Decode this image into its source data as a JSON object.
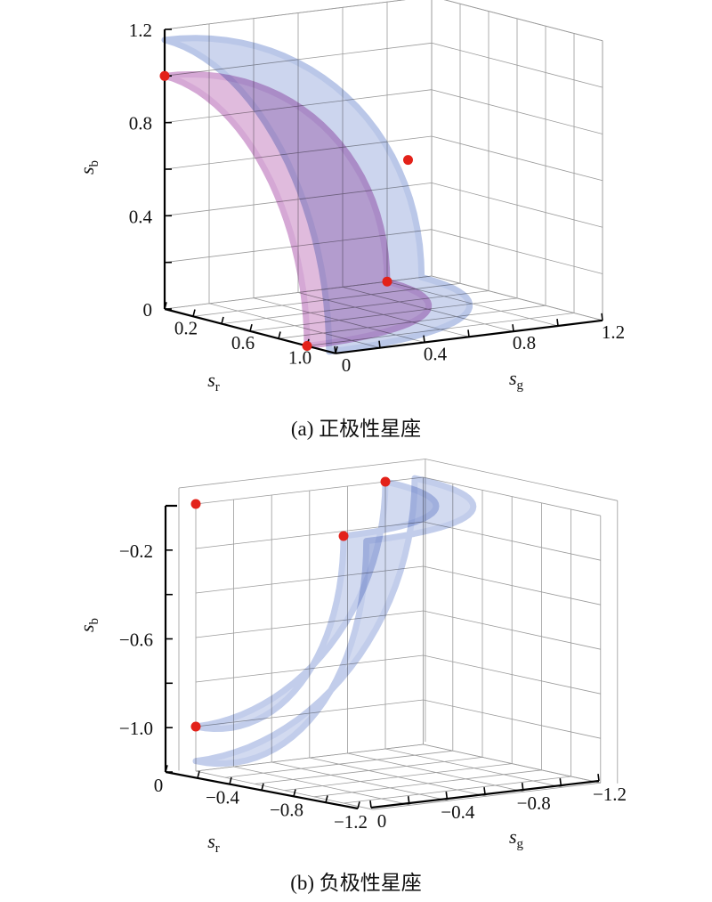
{
  "style": {
    "background": "#ffffff",
    "text_color": "#111111",
    "grid_color": "#9a9a9a",
    "axis_color": "#000000",
    "point_color": "#e32119",
    "point_radius": 5.5
  },
  "chart_data": [
    {
      "id": "a",
      "type": "scatter",
      "projection": "3d",
      "title": "(a) 正极性星座",
      "polarity": "positive",
      "axes": {
        "x": {
          "label_base": "s",
          "label_sub": "r",
          "range": [
            0,
            1.2
          ],
          "tick_values": [
            0.2,
            0.6,
            1.0
          ],
          "tick_labels": [
            "0.2",
            "0.6",
            "1.0"
          ]
        },
        "y": {
          "label_base": "s",
          "label_sub": "g",
          "range": [
            0,
            1.2
          ],
          "tick_values": [
            0,
            0.4,
            0.8,
            1.2
          ],
          "tick_labels": [
            "0",
            "0.4",
            "0.8",
            "1.2"
          ]
        },
        "z": {
          "label_base": "s",
          "label_sub": "b",
          "range": [
            0,
            1.2
          ],
          "tick_values": [
            0,
            0.4,
            0.8,
            1.2
          ],
          "tick_labels": [
            "0",
            "0.4",
            "0.8",
            "1.2"
          ]
        }
      },
      "grid": true,
      "grid_step": 0.2,
      "points": [
        [
          1,
          0,
          0
        ],
        [
          0,
          1,
          0
        ],
        [
          0,
          0,
          1
        ],
        [
          0.667,
          0.667,
          0.667
        ]
      ],
      "surfaces": [
        {
          "shape": "sphere-octant",
          "radius": 1.1547,
          "color": "#ccd5ee",
          "edge_color": "#bac7e8"
        },
        {
          "shape": "sphere-octant",
          "radius": 1.0,
          "color": "#e0bbdd",
          "edge_color": "#d5a8d5"
        }
      ]
    },
    {
      "id": "b",
      "type": "scatter",
      "projection": "3d",
      "title": "(b) 负极性星座",
      "polarity": "negative",
      "axes": {
        "x": {
          "label_base": "s",
          "label_sub": "r",
          "range": [
            -1.2,
            0
          ],
          "tick_values": [
            0,
            -0.4,
            -0.8,
            -1.2
          ],
          "tick_labels": [
            "0",
            "−0.4",
            "−0.8",
            "−1.2"
          ]
        },
        "y": {
          "label_base": "s",
          "label_sub": "g",
          "range": [
            -1.2,
            0
          ],
          "tick_values": [
            0,
            -0.4,
            -0.8,
            -1.2
          ],
          "tick_labels": [
            "0",
            "−0.4",
            "−0.8",
            "−1.2"
          ]
        },
        "z": {
          "label_base": "s",
          "label_sub": "b",
          "range": [
            -1.2,
            0
          ],
          "tick_values": [
            -0.2,
            -0.6,
            -1.0
          ],
          "tick_labels": [
            "−0.2",
            "−0.6",
            "−1.0"
          ]
        }
      },
      "grid": true,
      "grid_step": 0.2,
      "points": [
        [
          0,
          0,
          0
        ],
        [
          -1,
          0,
          0
        ],
        [
          0,
          -1,
          0
        ],
        [
          0,
          0,
          -1
        ]
      ],
      "surfaces": [
        {
          "shape": "sphere-octant",
          "radius": 1.1547,
          "color": "#d2daf0",
          "edge_color": "#c2cdeb"
        },
        {
          "shape": "sphere-octant",
          "radius": 1.0,
          "color": "#d2daf0",
          "edge_color": "#c2cdeb"
        }
      ]
    }
  ]
}
